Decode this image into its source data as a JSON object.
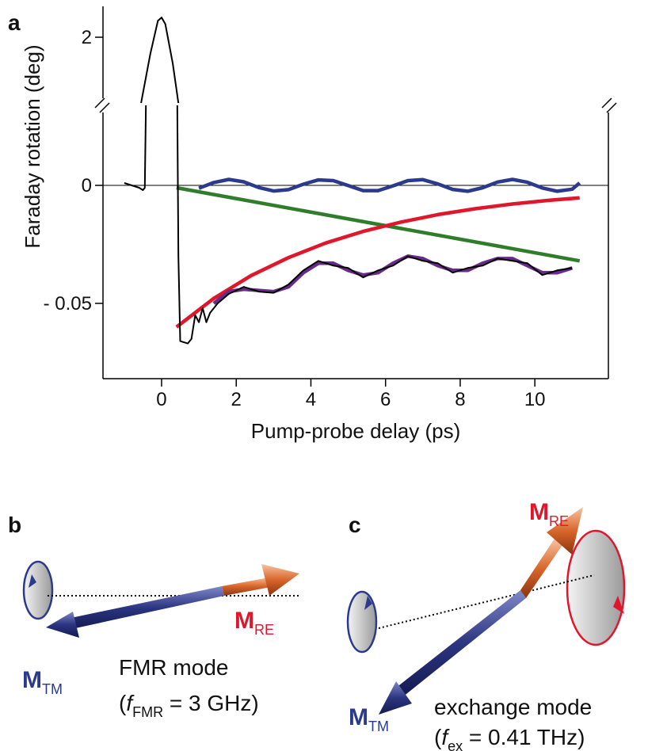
{
  "panels": {
    "a": "a",
    "b": "b",
    "c": "c"
  },
  "chart_data": [
    {
      "type": "line",
      "xlim": [
        -1.57,
        11.97
      ],
      "ylim": [
        1.0,
        2.47
      ],
      "yticks": [
        2
      ],
      "series": [
        {
          "color": "#000000",
          "x": [
            -0.55,
            -0.3,
            -0.1,
            0,
            0.1,
            0.3,
            0.45
          ],
          "values": [
            1.0,
            1.75,
            2.25,
            2.3,
            2.2,
            1.6,
            1.0
          ]
        }
      ]
    },
    {
      "type": "line",
      "y_label": "Faraday rotation (deg)",
      "x_label": "Pump-probe delay (ps)",
      "xlim": [
        -1.57,
        11.97
      ],
      "ylim": [
        -0.0819,
        0.0339
      ],
      "xticks": [
        0,
        2,
        4,
        6,
        8,
        10
      ],
      "yticks": [
        0,
        {
          "value": -0.05,
          "label": "- 0.05"
        }
      ],
      "series": [
        {
          "color": "#2b3a8c",
          "x": [
            1.0,
            1.4,
            1.8,
            2.2,
            2.6,
            3.0,
            3.4,
            3.8,
            4.2,
            4.6,
            5.0,
            5.4,
            5.8,
            6.2,
            6.6,
            7.0,
            7.4,
            7.8,
            8.2,
            8.6,
            9.0,
            9.4,
            9.8,
            10.2,
            10.6,
            11.0,
            11.2
          ],
          "values": [
            -0.0012,
            0.0012,
            0.0025,
            0.0015,
            -0.0009,
            -0.0024,
            -0.0018,
            0.0005,
            0.0023,
            0.002,
            -0.0001,
            -0.0022,
            -0.0022,
            -0.0002,
            0.002,
            0.0024,
            0.0006,
            -0.0017,
            -0.0025,
            -0.001,
            0.0014,
            0.0025,
            0.0013,
            -0.0011,
            -0.0025,
            -0.0016,
            0.001
          ]
        },
        {
          "color": "#2f7d2a",
          "x": [
            0.4,
            11.2
          ],
          "values": [
            -0.001,
            -0.032
          ]
        },
        {
          "color": "#e0162b",
          "x": [
            0.4,
            1.4,
            2.4,
            3.4,
            4.4,
            5.4,
            6.4,
            7.4,
            8.4,
            9.4,
            10.4,
            11.2
          ],
          "values": [
            -0.06,
            -0.0479,
            -0.0382,
            -0.0306,
            -0.0244,
            -0.0195,
            -0.0156,
            -0.0124,
            -0.0099,
            -0.0079,
            -0.0063,
            -0.0053
          ]
        },
        {
          "color": "#6a2a8a",
          "x": [
            1.4,
            1.8,
            2.2,
            2.6,
            3.0,
            3.4,
            3.8,
            4.2,
            4.6,
            5.0,
            5.4,
            5.8,
            6.2,
            6.6,
            7.0,
            7.4,
            7.8,
            8.2,
            8.6,
            9.0,
            9.4,
            9.8,
            10.2,
            10.6,
            11.0
          ],
          "values": [
            -0.05,
            -0.045,
            -0.044,
            -0.0445,
            -0.045,
            -0.043,
            -0.037,
            -0.033,
            -0.033,
            -0.036,
            -0.038,
            -0.037,
            -0.033,
            -0.03,
            -0.031,
            -0.034,
            -0.036,
            -0.036,
            -0.033,
            -0.031,
            -0.031,
            -0.034,
            -0.037,
            -0.037,
            -0.035
          ]
        },
        {
          "color": "#000000",
          "x": [
            -1.0,
            -0.8,
            -0.6,
            -0.5,
            -0.45,
            -0.42,
            null,
            0.42,
            0.45,
            0.5,
            0.7,
            0.8,
            0.9,
            1.0,
            1.1,
            1.2,
            1.3,
            1.5,
            1.8,
            2.2,
            2.6,
            3.0,
            3.4,
            3.8,
            4.2,
            4.6,
            5.0,
            5.4,
            5.8,
            6.2,
            6.6,
            7.0,
            7.4,
            7.8,
            8.2,
            8.6,
            9.0,
            9.4,
            9.8,
            10.2,
            10.6,
            11.0
          ],
          "values": [
            0.001,
            0.0,
            -0.001,
            -0.002,
            -0.001,
            0.0339,
            null,
            0.0339,
            -0.03,
            -0.066,
            -0.067,
            -0.065,
            -0.055,
            -0.058,
            -0.052,
            -0.058,
            -0.054,
            -0.05,
            -0.046,
            -0.043,
            -0.045,
            -0.0455,
            -0.042,
            -0.036,
            -0.032,
            -0.034,
            -0.035,
            -0.039,
            -0.036,
            -0.034,
            -0.03,
            -0.032,
            -0.033,
            -0.037,
            -0.035,
            -0.034,
            -0.031,
            -0.032,
            -0.033,
            -0.038,
            -0.036,
            -0.035
          ]
        }
      ]
    }
  ],
  "diagrams": {
    "b": {
      "m_tm": {
        "symbol": "M",
        "sub": "TM"
      },
      "m_re": {
        "symbol": "M",
        "sub": "RE"
      },
      "mode": "FMR mode",
      "freq": {
        "open": "(",
        "symbol": "f",
        "sub": "FMR",
        "rest": " = 3 GHz)"
      }
    },
    "c": {
      "m_tm": {
        "symbol": "M",
        "sub": "TM"
      },
      "m_re": {
        "symbol": "M",
        "sub": "RE"
      },
      "mode": "exchange mode",
      "freq": {
        "open": "(",
        "symbol": "f",
        "sub": "ex",
        "rest": " = 0.41 THz)"
      }
    }
  }
}
